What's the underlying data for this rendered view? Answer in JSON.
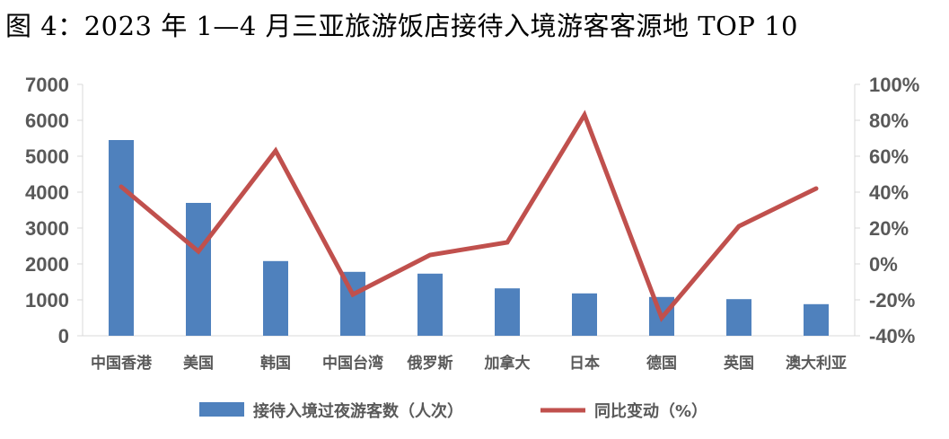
{
  "title": "图 4：2023 年 1—4 月三亚旅游饭店接待入境游客客源地 TOP 10",
  "chart_data": {
    "type": "bar+line",
    "categories": [
      "中国香港",
      "美国",
      "韩国",
      "中国台湾",
      "俄罗斯",
      "加拿大",
      "日本",
      "德国",
      "英国",
      "澳大利亚"
    ],
    "series": [
      {
        "name": "接待入境过夜游客数（人次）",
        "type": "bar",
        "axis": "left",
        "color": "#4F81BD",
        "values": [
          5450,
          3700,
          2080,
          1780,
          1730,
          1320,
          1180,
          1080,
          1020,
          880
        ]
      },
      {
        "name": "同比变动（%）",
        "type": "line",
        "axis": "right",
        "color": "#C0504D",
        "values": [
          43,
          7,
          63,
          -17,
          5,
          12,
          83,
          -30,
          21,
          42
        ]
      }
    ],
    "y_left": {
      "ylim": [
        0,
        7000
      ],
      "ticks": [
        "0",
        "1000",
        "2000",
        "3000",
        "4000",
        "5000",
        "6000",
        "7000"
      ]
    },
    "y_right": {
      "ylim": [
        -40,
        100
      ],
      "ticks": [
        "-40%",
        "-20%",
        "0%",
        "20%",
        "40%",
        "60%",
        "80%",
        "100%"
      ]
    },
    "grid": false,
    "legend_position": "bottom"
  }
}
